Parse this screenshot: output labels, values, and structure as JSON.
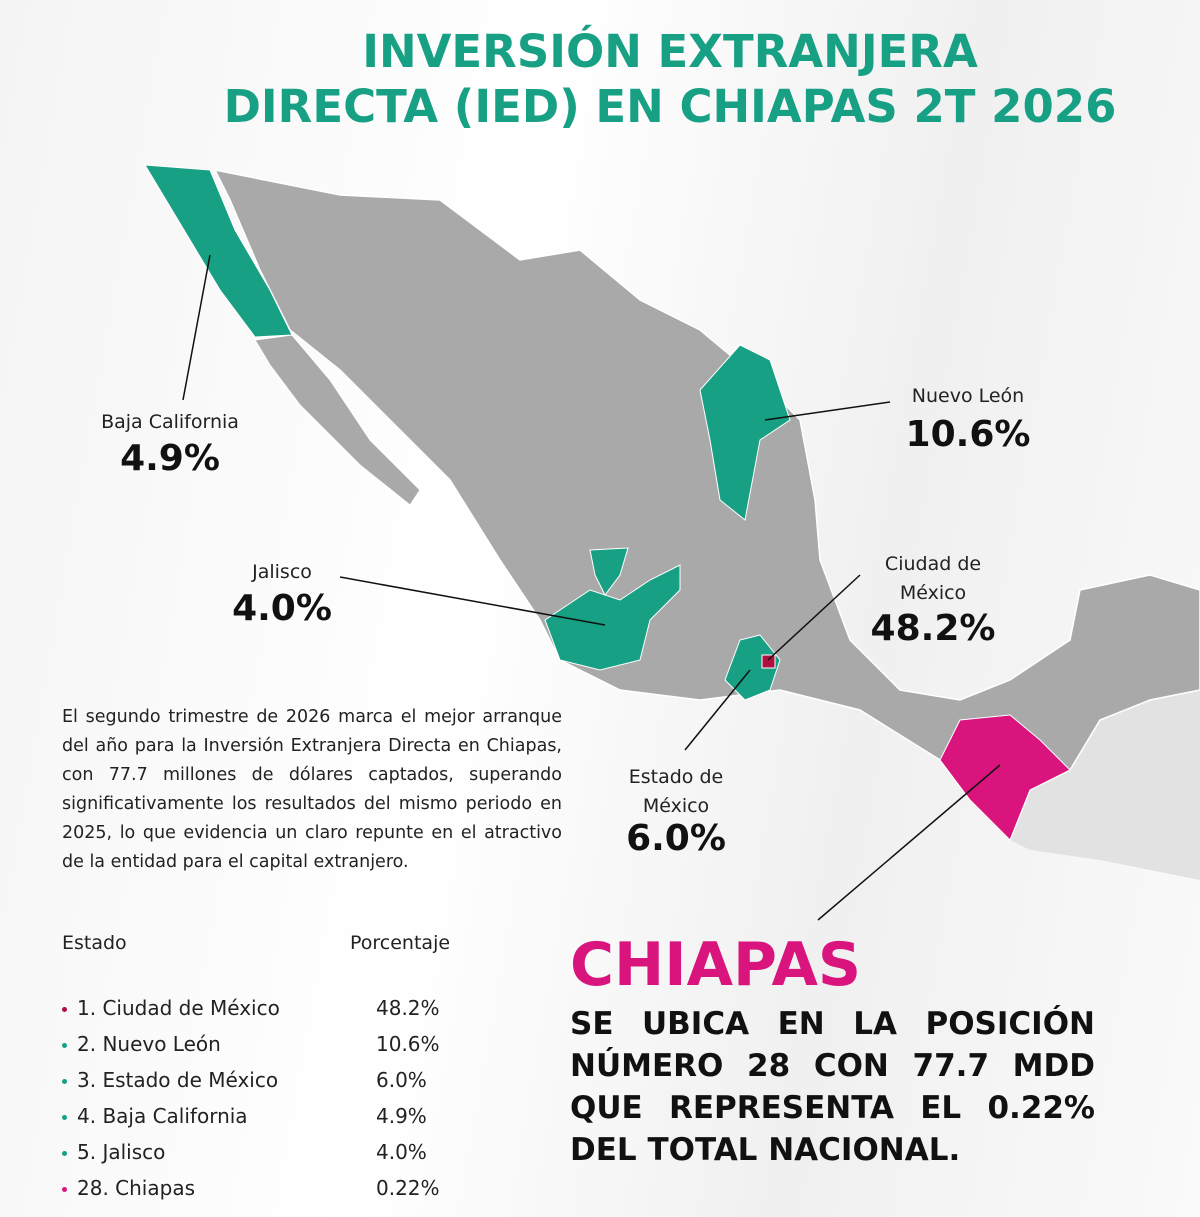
{
  "header": {
    "title_lines": [
      "INVERSIÓN EXTRANJERA",
      "DIRECTA (IED) EN CHIAPAS 2T 2026"
    ]
  },
  "callouts": [
    {
      "state": "Baja California",
      "value": "4.9%"
    },
    {
      "state": "Nuevo León",
      "value": "10.6%"
    },
    {
      "state": "Jalisco",
      "value": "4.0%"
    },
    {
      "state_lines": [
        "Ciudad de",
        "México"
      ],
      "value": "48.2%"
    },
    {
      "state_lines": [
        "Estado de",
        "México"
      ],
      "value": "6.0%"
    }
  ],
  "paragraph": "El segundo trimestre de 2026 marca el mejor arranque del año para la Inversión Extranjera Directa en Chiapas, con 77.7 millones de dólares captados, superando significativamente los resultados del mismo periodo en 2025, lo que evidencia un claro repunte en el atractivo de la entidad para el capital extranjero.",
  "table": {
    "headers": [
      "Estado",
      "Porcentaje"
    ],
    "rows": [
      [
        "1. Ciudad de México",
        "48.2%"
      ],
      [
        "2. Nuevo León",
        "10.6%"
      ],
      [
        "3. Estado de México",
        "6.0%"
      ],
      [
        "4. Baja California",
        "4.9%"
      ],
      [
        "5. Jalisco",
        "4.0%"
      ],
      [
        "28. Chiapas",
        "0.22%"
      ]
    ]
  },
  "highlight": {
    "title": "CHIAPAS",
    "lines": [
      "SE UBICA EN LA POSICIÓN",
      "NÚMERO 28 CON 77.7 MDD",
      "QUE REPRESENTA EL 0.22%",
      "DEL TOTAL NACIONAL."
    ]
  }
}
